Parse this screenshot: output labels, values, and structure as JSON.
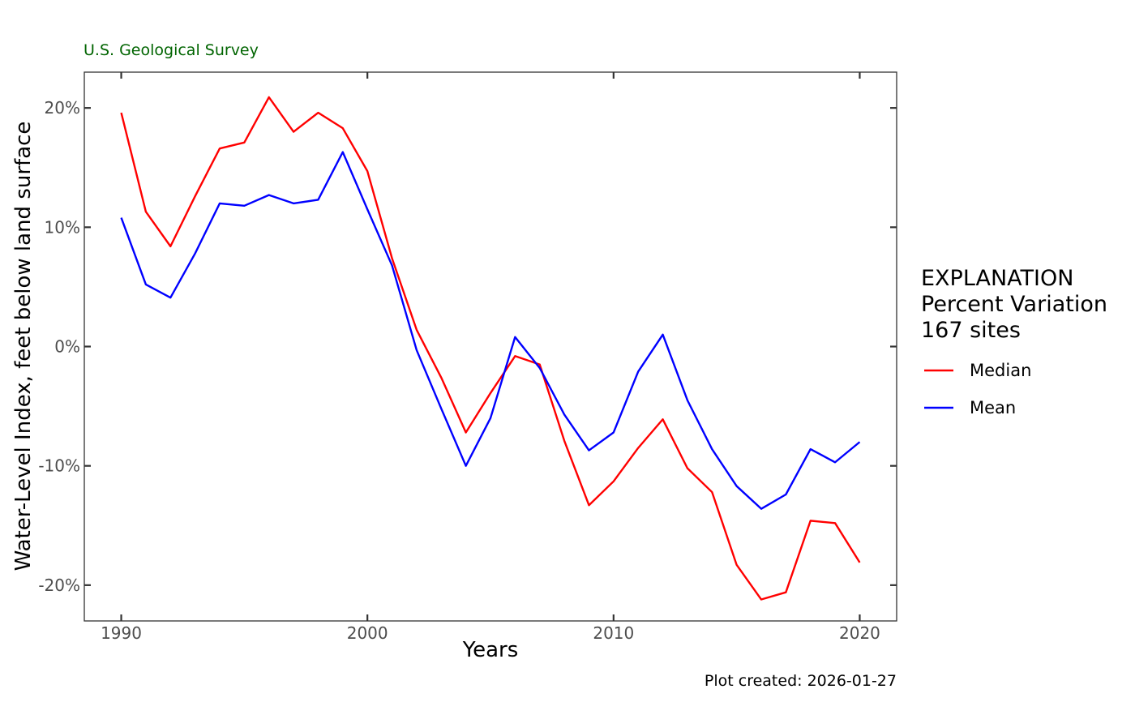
{
  "chart_data": {
    "type": "line",
    "subtitle": "U.S. Geological Survey",
    "xlabel": "Years",
    "ylabel": "Water-Level Index, feet below land surface",
    "caption": "Plot created: 2026-01-27",
    "xlim": [
      1988.5,
      2021.5
    ],
    "ylim": [
      -23,
      23
    ],
    "x_ticks": [
      1990,
      2000,
      2010,
      2020
    ],
    "x_tick_labels": [
      "1990",
      "2000",
      "2010",
      "2020"
    ],
    "y_ticks": [
      20,
      10,
      0,
      -10,
      -20
    ],
    "y_tick_labels": [
      "20%",
      "10%",
      "0%",
      "-10%",
      "-20%"
    ],
    "grid": false,
    "legend": {
      "position": "right",
      "title_lines": [
        "EXPLANATION",
        "Percent Variation",
        "167 sites"
      ]
    },
    "colors": {
      "subtitle": "#006400",
      "median": "#ff0000",
      "mean": "#0000ff"
    },
    "x": [
      1990,
      1991,
      1992,
      1993,
      1994,
      1995,
      1996,
      1997,
      1998,
      1999,
      2000,
      2001,
      2002,
      2003,
      2004,
      2005,
      2006,
      2007,
      2008,
      2009,
      2010,
      2011,
      2012,
      2013,
      2014,
      2015,
      2016,
      2017,
      2018,
      2019,
      2020
    ],
    "series": [
      {
        "name": "Median",
        "color": "#ff0000",
        "values": [
          19.6,
          11.3,
          8.4,
          12.6,
          16.6,
          17.1,
          20.9,
          18.0,
          19.6,
          18.3,
          14.7,
          7.4,
          1.4,
          -2.6,
          -7.2,
          -3.9,
          -0.8,
          -1.5,
          -7.9,
          -13.3,
          -11.3,
          -8.5,
          -6.1,
          -10.2,
          -12.2,
          -18.3,
          -21.2,
          -20.6,
          -14.6,
          -14.8,
          -18.1
        ]
      },
      {
        "name": "Mean",
        "color": "#0000ff",
        "values": [
          10.8,
          5.2,
          4.1,
          7.8,
          12.0,
          11.8,
          12.7,
          12.0,
          12.3,
          16.3,
          11.5,
          6.8,
          -0.3,
          -5.2,
          -10.0,
          -6.0,
          0.8,
          -1.8,
          -5.7,
          -8.7,
          -7.2,
          -2.1,
          1.0,
          -4.5,
          -8.6,
          -11.7,
          -13.6,
          -12.4,
          -8.6,
          -9.7,
          -8.0
        ]
      }
    ]
  }
}
